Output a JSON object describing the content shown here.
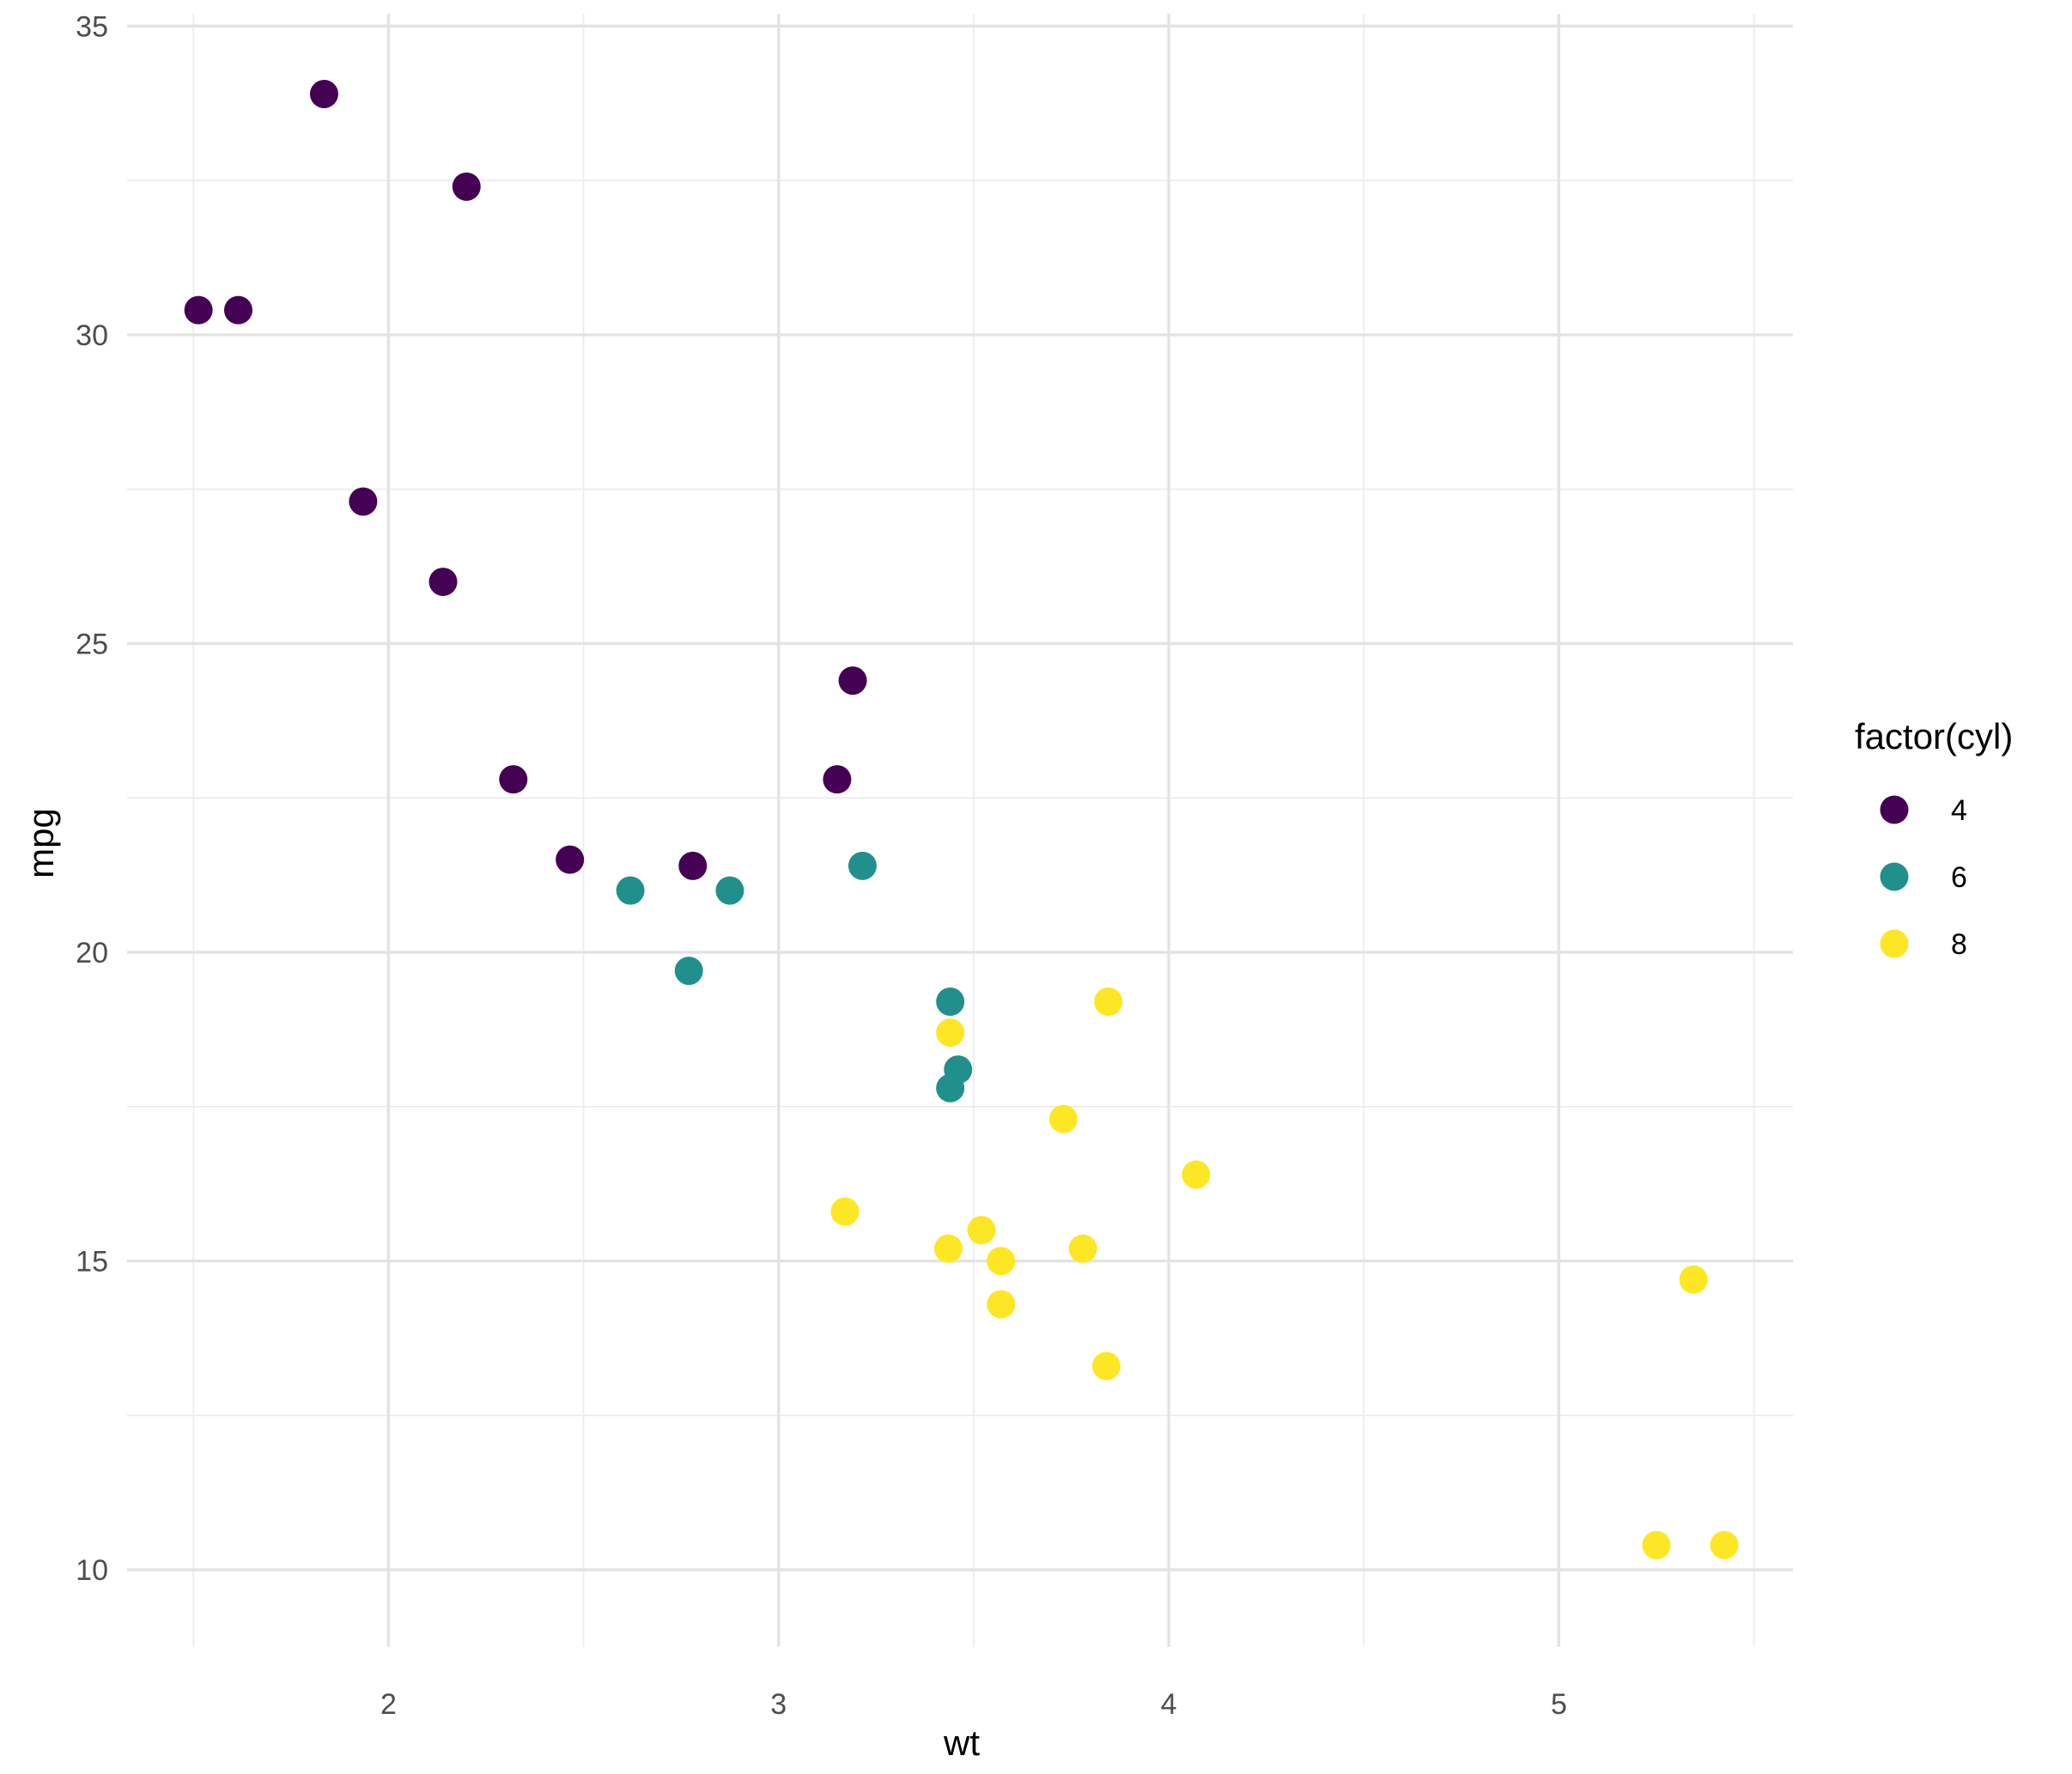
{
  "chart_data": {
    "type": "scatter",
    "xlabel": "wt",
    "ylabel": "mpg",
    "xlim": [
      1.33,
      5.6
    ],
    "ylim": [
      8.75,
      35.2
    ],
    "x_ticks": [
      2,
      3,
      4,
      5
    ],
    "x_minor_ticks": [
      1.5,
      2.5,
      3.5,
      4.5,
      5.5
    ],
    "y_ticks": [
      10,
      15,
      20,
      25,
      30,
      35
    ],
    "y_minor_ticks": [
      12.5,
      17.5,
      22.5,
      27.5,
      32.5
    ],
    "grid": true,
    "legend": {
      "title": "factor(cyl)",
      "placement": "right"
    },
    "series": [
      {
        "name": "4",
        "color": "#440154",
        "points": [
          {
            "x": 1.835,
            "y": 33.9
          },
          {
            "x": 2.2,
            "y": 32.4
          },
          {
            "x": 1.513,
            "y": 30.4
          },
          {
            "x": 1.615,
            "y": 30.4
          },
          {
            "x": 1.935,
            "y": 27.3
          },
          {
            "x": 2.14,
            "y": 26.0
          },
          {
            "x": 3.19,
            "y": 24.4
          },
          {
            "x": 2.32,
            "y": 22.8
          },
          {
            "x": 3.15,
            "y": 22.8
          },
          {
            "x": 2.465,
            "y": 21.5
          },
          {
            "x": 2.78,
            "y": 21.4
          }
        ]
      },
      {
        "name": "6",
        "color": "#21908C",
        "points": [
          {
            "x": 2.62,
            "y": 21.0
          },
          {
            "x": 2.875,
            "y": 21.0
          },
          {
            "x": 3.215,
            "y": 21.4
          },
          {
            "x": 2.77,
            "y": 19.7
          },
          {
            "x": 3.44,
            "y": 19.2
          },
          {
            "x": 3.46,
            "y": 18.1
          },
          {
            "x": 3.44,
            "y": 17.8
          }
        ]
      },
      {
        "name": "8",
        "color": "#FDE725",
        "points": [
          {
            "x": 3.44,
            "y": 18.7
          },
          {
            "x": 3.845,
            "y": 19.2
          },
          {
            "x": 3.73,
            "y": 17.3
          },
          {
            "x": 4.07,
            "y": 16.4
          },
          {
            "x": 3.17,
            "y": 15.8
          },
          {
            "x": 3.52,
            "y": 15.5
          },
          {
            "x": 3.435,
            "y": 15.2
          },
          {
            "x": 3.78,
            "y": 15.2
          },
          {
            "x": 3.57,
            "y": 15.0
          },
          {
            "x": 3.57,
            "y": 14.3
          },
          {
            "x": 5.345,
            "y": 14.7
          },
          {
            "x": 3.84,
            "y": 13.3
          },
          {
            "x": 5.25,
            "y": 10.4
          },
          {
            "x": 5.424,
            "y": 10.4
          }
        ]
      }
    ]
  }
}
